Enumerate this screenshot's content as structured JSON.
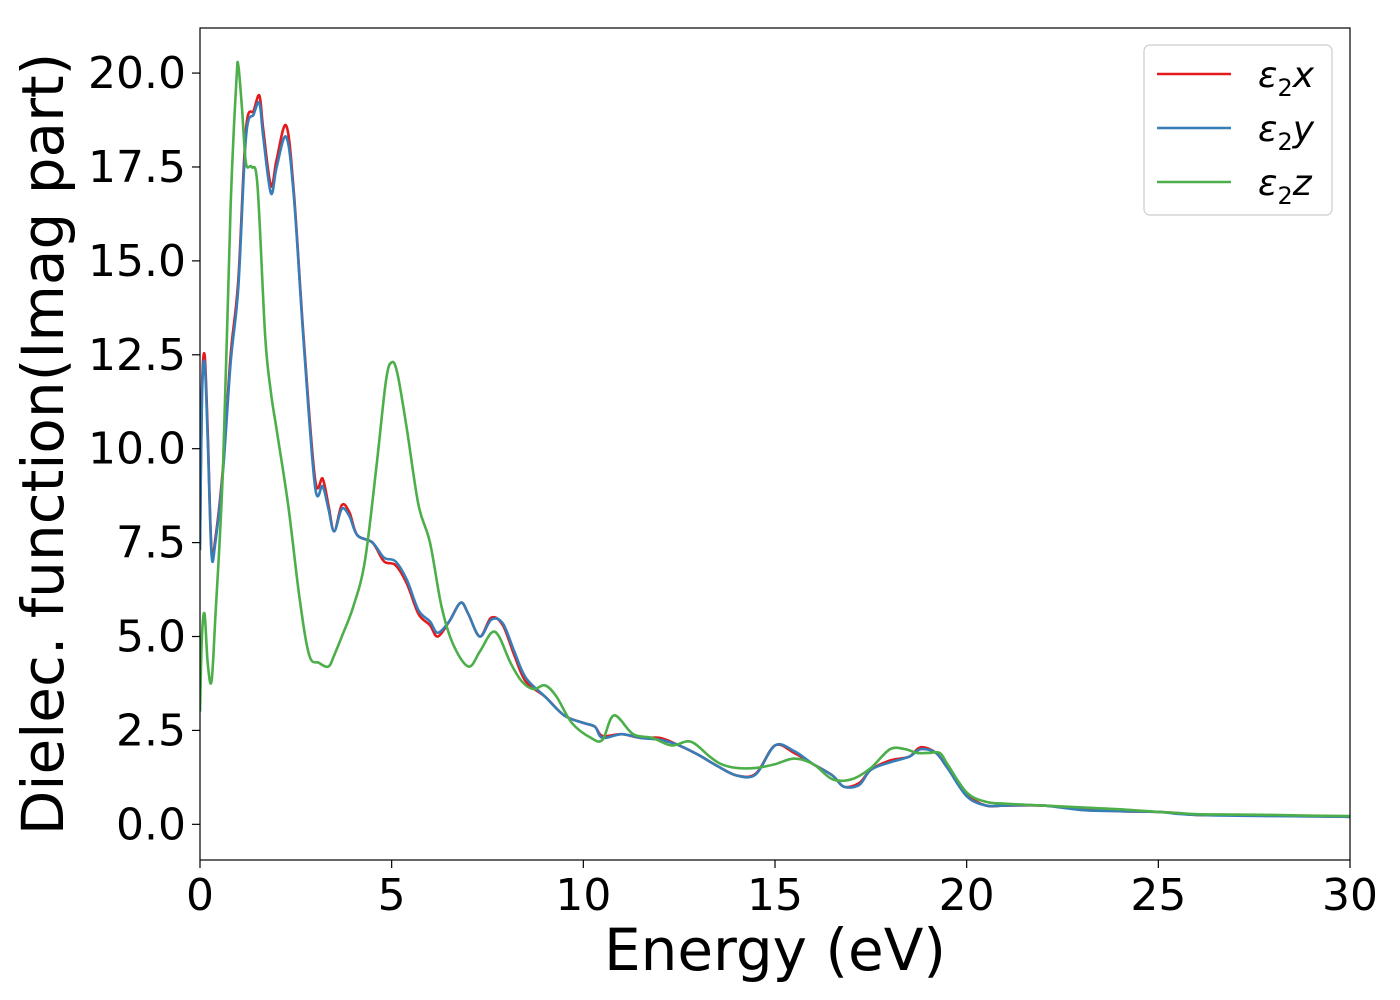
{
  "chart_data": {
    "type": "line",
    "xlabel": "Energy (eV)",
    "ylabel": "Dielec. function(Imag part)",
    "xlim": [
      0,
      30
    ],
    "ylim": [
      -0.95,
      21.2
    ],
    "xticks": [
      "0",
      "5",
      "10",
      "15",
      "20",
      "25",
      "30"
    ],
    "yticks": [
      "0.0",
      "2.5",
      "5.0",
      "7.5",
      "10.0",
      "12.5",
      "15.0",
      "17.5",
      "20.0"
    ],
    "grid": false,
    "legend_position": "top-right",
    "series": [
      {
        "name": "ε₂x",
        "legend_main": "ε",
        "legend_sub": "2",
        "legend_var": "x",
        "color": "#e41a1c",
        "x": [
          0,
          0.05,
          0.12,
          0.2,
          0.3,
          0.4,
          0.6,
          0.8,
          1.0,
          1.2,
          1.4,
          1.55,
          1.65,
          1.85,
          2.0,
          2.25,
          2.45,
          2.7,
          3.0,
          3.2,
          3.35,
          3.5,
          3.7,
          3.9,
          4.1,
          4.5,
          4.8,
          5.1,
          5.4,
          5.7,
          6.0,
          6.2,
          6.5,
          6.8,
          7.0,
          7.3,
          7.6,
          7.9,
          8.2,
          8.5,
          9.0,
          9.5,
          10.0,
          10.3,
          10.5,
          11.0,
          11.5,
          12.0,
          12.5,
          13.0,
          13.5,
          14.0,
          14.5,
          15.0,
          15.5,
          16.0,
          16.5,
          16.8,
          17.2,
          17.5,
          18.0,
          18.5,
          18.8,
          19.2,
          19.5,
          20.0,
          20.5,
          21.0,
          22.0,
          23.0,
          24.0,
          25.0,
          25.5,
          26.0,
          27.0,
          28.0,
          29.0,
          30.0
        ],
        "y": [
          7.5,
          11.5,
          12.5,
          10.5,
          7.3,
          7.6,
          9.5,
          12.5,
          14.5,
          18.5,
          19.0,
          19.4,
          18.5,
          17.0,
          17.7,
          18.6,
          16.8,
          13.0,
          9.2,
          9.2,
          8.5,
          7.8,
          8.5,
          8.3,
          7.7,
          7.5,
          7.0,
          6.9,
          6.4,
          5.6,
          5.3,
          5.0,
          5.4,
          5.9,
          5.6,
          5.0,
          5.5,
          5.3,
          4.5,
          3.8,
          3.4,
          2.9,
          2.7,
          2.6,
          2.35,
          2.4,
          2.3,
          2.3,
          2.1,
          1.85,
          1.55,
          1.3,
          1.35,
          2.1,
          1.9,
          1.6,
          1.3,
          1.0,
          1.1,
          1.45,
          1.7,
          1.8,
          2.05,
          1.9,
          1.5,
          0.8,
          0.5,
          0.5,
          0.5,
          0.4,
          0.35,
          0.33,
          0.3,
          0.25,
          0.25,
          0.23,
          0.22,
          0.2
        ]
      },
      {
        "name": "ε₂y",
        "legend_main": "ε",
        "legend_sub": "2",
        "legend_var": "y",
        "color": "#377eb8",
        "x": [
          0,
          0.05,
          0.12,
          0.2,
          0.3,
          0.4,
          0.6,
          0.8,
          1.0,
          1.2,
          1.4,
          1.55,
          1.65,
          1.85,
          2.0,
          2.25,
          2.45,
          2.7,
          3.0,
          3.2,
          3.35,
          3.5,
          3.7,
          3.9,
          4.1,
          4.5,
          4.8,
          5.1,
          5.4,
          5.7,
          6.0,
          6.2,
          6.5,
          6.8,
          7.0,
          7.3,
          7.6,
          7.9,
          8.2,
          8.5,
          9.0,
          9.5,
          10.0,
          10.3,
          10.5,
          11.0,
          11.5,
          12.0,
          12.5,
          13.0,
          13.5,
          14.0,
          14.5,
          15.0,
          15.5,
          16.0,
          16.5,
          16.8,
          17.2,
          17.5,
          18.0,
          18.5,
          18.8,
          19.2,
          19.5,
          20.0,
          20.5,
          21.0,
          22.0,
          23.0,
          24.0,
          25.0,
          25.5,
          26.0,
          27.0,
          28.0,
          29.0,
          30.0
        ],
        "y": [
          7.3,
          11.3,
          12.3,
          10.3,
          7.2,
          7.5,
          9.4,
          12.3,
          14.3,
          18.3,
          18.9,
          19.2,
          18.3,
          16.8,
          17.5,
          18.3,
          16.7,
          12.9,
          9.0,
          9.0,
          8.4,
          7.8,
          8.4,
          8.2,
          7.7,
          7.5,
          7.1,
          7.0,
          6.5,
          5.7,
          5.4,
          5.1,
          5.4,
          5.9,
          5.6,
          5.0,
          5.45,
          5.35,
          4.6,
          3.9,
          3.4,
          2.9,
          2.7,
          2.6,
          2.3,
          2.4,
          2.3,
          2.25,
          2.1,
          1.85,
          1.55,
          1.3,
          1.33,
          2.1,
          1.95,
          1.6,
          1.3,
          1.0,
          1.05,
          1.45,
          1.65,
          1.8,
          2.0,
          1.9,
          1.5,
          0.75,
          0.5,
          0.5,
          0.5,
          0.38,
          0.35,
          0.33,
          0.28,
          0.25,
          0.23,
          0.22,
          0.21,
          0.2
        ]
      },
      {
        "name": "ε₂z",
        "legend_main": "ε",
        "legend_sub": "2",
        "legend_var": "z",
        "color": "#4daf4a",
        "x": [
          0,
          0.05,
          0.12,
          0.2,
          0.3,
          0.4,
          0.6,
          0.8,
          0.95,
          1.0,
          1.1,
          1.2,
          1.35,
          1.5,
          1.7,
          1.85,
          2.0,
          2.3,
          2.6,
          2.85,
          3.1,
          3.35,
          3.5,
          3.7,
          4.0,
          4.3,
          4.6,
          4.85,
          5.0,
          5.15,
          5.4,
          5.7,
          6.0,
          6.3,
          6.6,
          7.0,
          7.3,
          7.6,
          7.8,
          8.1,
          8.4,
          8.7,
          9.0,
          9.3,
          9.7,
          10.2,
          10.5,
          10.8,
          11.3,
          11.8,
          12.3,
          12.8,
          13.3,
          13.6,
          14.0,
          14.5,
          15.0,
          15.5,
          16.0,
          16.5,
          17.0,
          17.5,
          18.0,
          18.4,
          18.7,
          19.0,
          19.3,
          19.5,
          20.0,
          20.5,
          21.0,
          22.0,
          23.0,
          24.0,
          25.0,
          25.5,
          26.0,
          27.0,
          28.0,
          29.0,
          30.0
        ],
        "y": [
          3.0,
          5.0,
          5.6,
          4.3,
          3.8,
          5.5,
          9.5,
          16.5,
          19.8,
          20.2,
          19.0,
          17.6,
          17.5,
          17.0,
          13.0,
          11.5,
          10.5,
          8.5,
          6.0,
          4.5,
          4.3,
          4.2,
          4.5,
          5.0,
          5.8,
          7.0,
          9.5,
          11.8,
          12.3,
          12.0,
          10.5,
          8.5,
          7.5,
          5.8,
          4.8,
          4.2,
          4.6,
          5.1,
          5.0,
          4.3,
          3.8,
          3.6,
          3.7,
          3.4,
          2.7,
          2.3,
          2.25,
          2.9,
          2.4,
          2.3,
          2.1,
          2.2,
          1.8,
          1.6,
          1.5,
          1.5,
          1.6,
          1.75,
          1.6,
          1.2,
          1.2,
          1.5,
          2.0,
          2.0,
          1.9,
          1.9,
          1.9,
          1.6,
          0.85,
          0.6,
          0.55,
          0.5,
          0.45,
          0.4,
          0.33,
          0.3,
          0.27,
          0.26,
          0.25,
          0.23,
          0.22
        ]
      }
    ]
  }
}
